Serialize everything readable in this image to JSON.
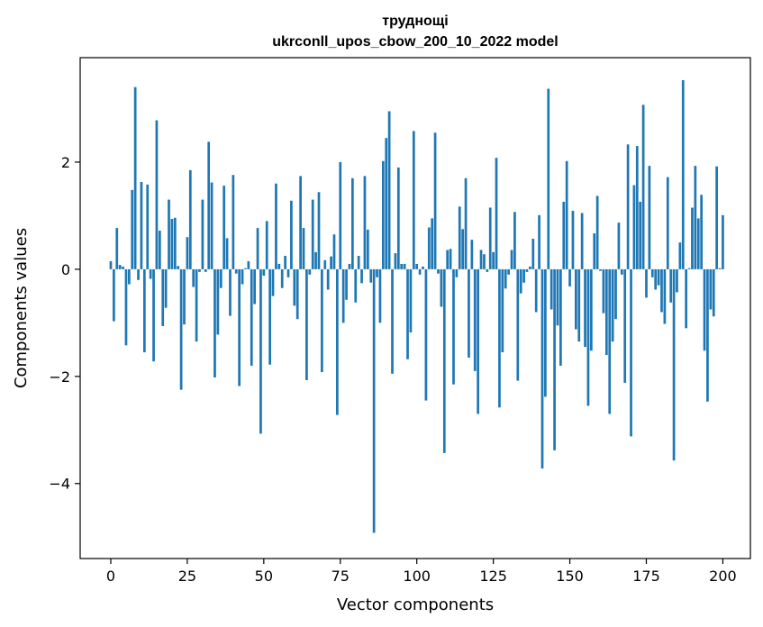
{
  "chart_data": {
    "type": "bar",
    "title": "труднощі",
    "subtitle": "ukrconll_upos_cbow_200_10_2022 model",
    "xlabel": "Vector components",
    "ylabel": "Components values",
    "xlim": [
      -10,
      209
    ],
    "ylim": [
      -5.4,
      3.95
    ],
    "xticks": [
      0,
      25,
      50,
      75,
      100,
      125,
      150,
      175,
      200
    ],
    "xtick_labels": [
      "0",
      "25",
      "50",
      "75",
      "100",
      "125",
      "150",
      "175",
      "200"
    ],
    "yticks": [
      -4,
      -2,
      0,
      2
    ],
    "ytick_labels": [
      "−4",
      "−2",
      "0",
      "2"
    ],
    "bar_color": "#1f77b4",
    "grid": false,
    "values": [
      0.15,
      -0.97,
      0.77,
      0.08,
      0.05,
      -1.42,
      -0.28,
      1.48,
      3.4,
      -0.2,
      1.63,
      -1.55,
      1.58,
      -0.18,
      -1.72,
      2.78,
      0.72,
      -1.06,
      -0.72,
      1.3,
      0.94,
      0.96,
      0.06,
      -2.25,
      -1.03,
      0.6,
      1.85,
      -0.33,
      -1.35,
      -0.05,
      1.3,
      -0.05,
      2.38,
      1.62,
      -2.02,
      -1.22,
      -0.35,
      1.56,
      0.58,
      -0.87,
      1.76,
      -0.08,
      -2.18,
      -0.28,
      0.02,
      0.15,
      -1.8,
      -0.65,
      0.77,
      -3.07,
      -0.12,
      0.9,
      -1.78,
      -0.5,
      1.6,
      0.1,
      -0.35,
      0.25,
      -0.15,
      1.28,
      -0.68,
      -0.93,
      1.74,
      0.77,
      -2.07,
      -0.1,
      1.3,
      0.32,
      1.44,
      -1.92,
      0.17,
      -0.38,
      0.24,
      0.65,
      -2.72,
      2.0,
      -1.0,
      -0.57,
      0.1,
      1.7,
      -0.62,
      0.25,
      -0.26,
      1.74,
      0.74,
      -0.25,
      -4.92,
      -0.15,
      -1.0,
      2.02,
      2.45,
      2.95,
      -1.95,
      0.3,
      1.9,
      0.1,
      0.1,
      -1.68,
      -1.18,
      2.58,
      0.1,
      -0.1,
      0.05,
      -2.45,
      0.78,
      0.95,
      2.55,
      -0.08,
      -0.7,
      -3.43,
      0.36,
      0.38,
      -2.15,
      -0.15,
      1.17,
      0.75,
      1.7,
      -1.65,
      0.55,
      -1.9,
      -2.7,
      0.36,
      0.28,
      -0.05,
      1.15,
      0.32,
      2.08,
      -2.58,
      -1.55,
      -0.36,
      -0.1,
      0.36,
      1.07,
      -2.08,
      -0.45,
      -0.25,
      -0.05,
      0.05,
      0.57,
      -0.8,
      1.01,
      -3.72,
      -2.38,
      3.37,
      -0.75,
      -3.38,
      -1.05,
      -1.8,
      1.26,
      2.02,
      -0.32,
      1.09,
      -1.12,
      -1.35,
      1.05,
      -1.45,
      -2.55,
      -1.52,
      0.67,
      1.37,
      -0.03,
      -0.82,
      -1.6,
      -2.7,
      -1.35,
      -0.93,
      0.87,
      -0.1,
      -2.12,
      2.33,
      -3.12,
      1.57,
      2.3,
      1.26,
      3.07,
      -0.53,
      1.93,
      -0.15,
      -0.38,
      -0.3,
      -0.8,
      -1.02,
      1.72,
      -0.62,
      -3.57,
      -0.43,
      0.5,
      3.53,
      -1.1,
      0.02,
      1.15,
      1.93,
      0.95,
      1.39,
      -1.52,
      -2.47,
      -0.75,
      -0.88,
      1.92,
      0.02,
      1.01
    ]
  }
}
